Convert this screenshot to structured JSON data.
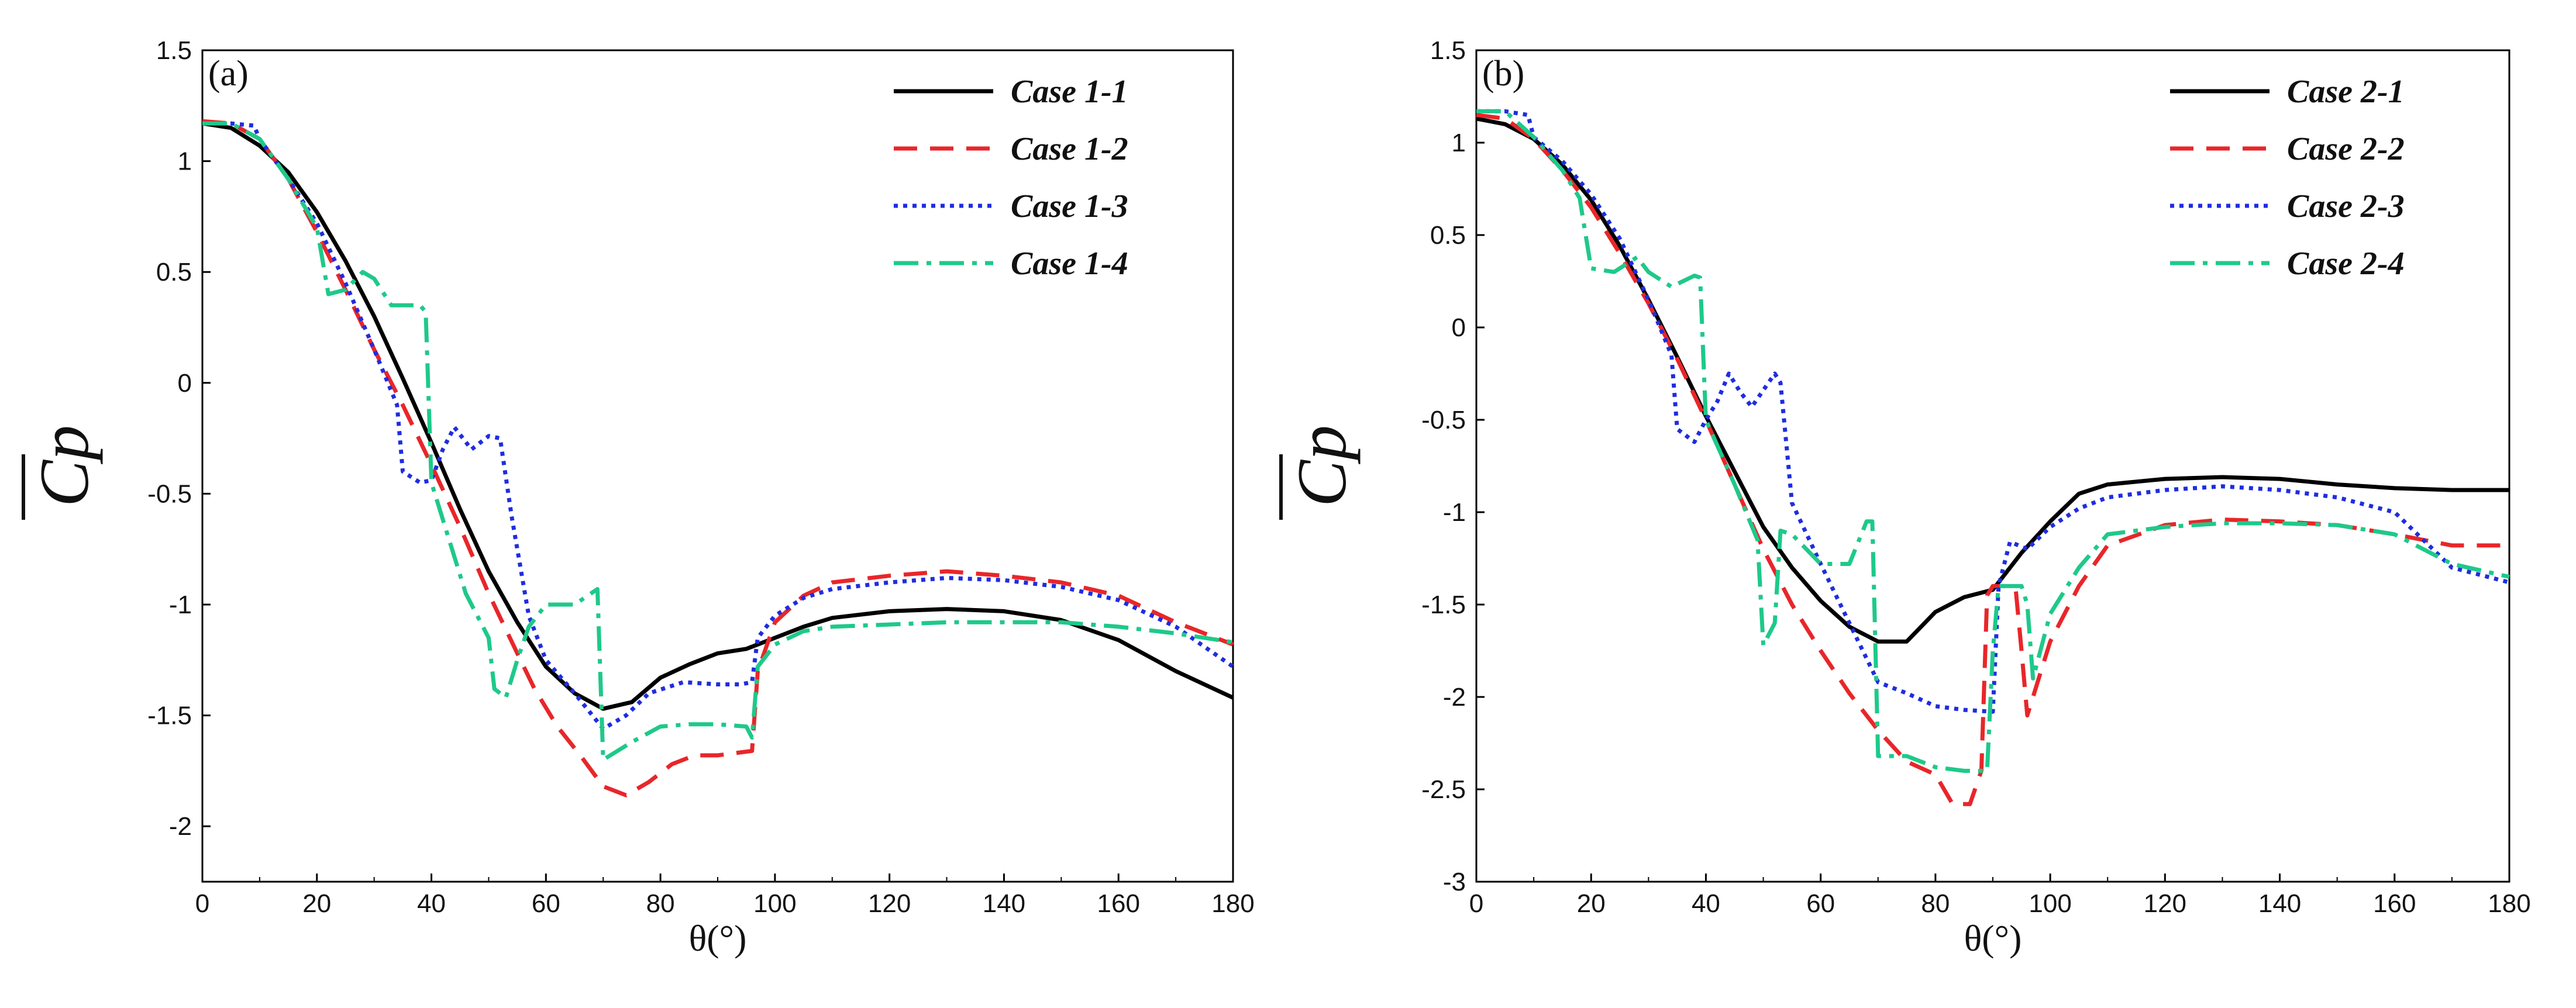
{
  "chart_data": [
    {
      "type": "line",
      "panel_label": "(a)",
      "xlabel": "θ(°)",
      "ylabel": "Cp",
      "xlim": [
        0,
        180
      ],
      "ylim": [
        -2.25,
        1.5
      ],
      "x_ticks": [
        0,
        20,
        40,
        60,
        80,
        100,
        120,
        140,
        160,
        180
      ],
      "x_tick_labels": [
        "0",
        "20",
        "40",
        "60",
        "80",
        "100",
        "120",
        "140",
        "160",
        "180"
      ],
      "y_ticks": [
        1.5,
        1,
        0.5,
        0,
        -0.5,
        -1,
        -1.5,
        -2
      ],
      "y_tick_labels": [
        "1.5",
        "1",
        "0.5",
        "0",
        "-0.5",
        "-1",
        "-1.5",
        "-2"
      ],
      "grid": false,
      "legend": "top-right",
      "series": [
        {
          "name": "Case 1-1",
          "color": "#000000",
          "dash": "solid",
          "x": [
            0,
            5,
            10,
            15,
            20,
            25,
            30,
            35,
            40,
            45,
            50,
            55,
            60,
            65,
            70,
            75,
            80,
            85,
            90,
            95,
            100,
            105,
            110,
            120,
            130,
            140,
            150,
            160,
            170,
            180
          ],
          "y": [
            1.17,
            1.15,
            1.07,
            0.95,
            0.77,
            0.55,
            0.3,
            0.02,
            -0.27,
            -0.57,
            -0.85,
            -1.08,
            -1.28,
            -1.4,
            -1.47,
            -1.44,
            -1.33,
            -1.27,
            -1.22,
            -1.2,
            -1.15,
            -1.1,
            -1.06,
            -1.03,
            -1.02,
            -1.03,
            -1.07,
            -1.16,
            -1.3,
            -1.42
          ]
        },
        {
          "name": "Case 1-2",
          "color": "#e8262a",
          "dash": "long",
          "x": [
            0,
            5,
            10,
            15,
            20,
            25,
            30,
            35,
            40,
            45,
            50,
            55,
            58,
            62,
            66,
            70,
            74,
            78,
            82,
            86,
            90,
            93,
            96,
            97,
            100,
            105,
            110,
            120,
            130,
            140,
            150,
            160,
            170,
            180
          ],
          "y": [
            1.18,
            1.17,
            1.1,
            0.92,
            0.68,
            0.42,
            0.15,
            -0.1,
            -0.37,
            -0.65,
            -0.95,
            -1.22,
            -1.38,
            -1.55,
            -1.68,
            -1.82,
            -1.86,
            -1.8,
            -1.72,
            -1.68,
            -1.68,
            -1.67,
            -1.66,
            -1.3,
            -1.08,
            -0.96,
            -0.9,
            -0.87,
            -0.85,
            -0.87,
            -0.9,
            -0.96,
            -1.08,
            -1.18
          ]
        },
        {
          "name": "Case 1-3",
          "color": "#1f2de0",
          "dash": "dot",
          "x": [
            0,
            5,
            9,
            10,
            15,
            20,
            25,
            30,
            34,
            35,
            38,
            40,
            42,
            44,
            47,
            50,
            52,
            54,
            57,
            60,
            65,
            70,
            74,
            78,
            84,
            90,
            94,
            96,
            97,
            100,
            105,
            110,
            120,
            130,
            140,
            150,
            160,
            170,
            180
          ],
          "y": [
            1.17,
            1.17,
            1.16,
            1.1,
            0.92,
            0.72,
            0.45,
            0.15,
            -0.1,
            -0.4,
            -0.45,
            -0.44,
            -0.3,
            -0.2,
            -0.3,
            -0.24,
            -0.25,
            -0.6,
            -1.05,
            -1.25,
            -1.4,
            -1.56,
            -1.5,
            -1.4,
            -1.35,
            -1.36,
            -1.36,
            -1.35,
            -1.15,
            -1.05,
            -0.97,
            -0.93,
            -0.9,
            -0.88,
            -0.89,
            -0.92,
            -0.98,
            -1.1,
            -1.28
          ]
        },
        {
          "name": "Case 1-4",
          "color": "#1ec98a",
          "dash": "dashdot",
          "x": [
            0,
            5,
            10,
            15,
            20,
            22,
            25,
            28,
            30,
            33,
            38,
            39,
            40,
            43,
            46,
            50,
            51,
            53,
            55,
            57,
            60,
            65,
            69,
            70,
            75,
            80,
            85,
            90,
            95,
            96,
            97,
            100,
            105,
            110,
            120,
            130,
            140,
            150,
            160,
            170,
            180
          ],
          "y": [
            1.17,
            1.17,
            1.1,
            0.92,
            0.7,
            0.4,
            0.42,
            0.5,
            0.47,
            0.35,
            0.35,
            0.32,
            -0.45,
            -0.7,
            -0.95,
            -1.15,
            -1.38,
            -1.42,
            -1.25,
            -1.1,
            -1.0,
            -1.0,
            -0.93,
            -1.7,
            -1.62,
            -1.55,
            -1.54,
            -1.54,
            -1.55,
            -1.6,
            -1.28,
            -1.18,
            -1.12,
            -1.1,
            -1.09,
            -1.08,
            -1.08,
            -1.08,
            -1.1,
            -1.13,
            -1.17
          ]
        }
      ]
    },
    {
      "type": "line",
      "panel_label": "(b)",
      "xlabel": "θ(°)",
      "ylabel": "Cp",
      "xlim": [
        0,
        180
      ],
      "ylim": [
        -3,
        1.5
      ],
      "x_ticks": [
        0,
        20,
        40,
        60,
        80,
        100,
        120,
        140,
        160,
        180
      ],
      "x_tick_labels": [
        "0",
        "20",
        "40",
        "60",
        "80",
        "100",
        "120",
        "140",
        "160",
        "180"
      ],
      "y_ticks": [
        1.5,
        1,
        0.5,
        0,
        -0.5,
        -1,
        -1.5,
        -2,
        -2.5,
        -3
      ],
      "y_tick_labels": [
        "1.5",
        "1",
        "0.5",
        "0",
        "-0.5",
        "-1",
        "-1.5",
        "-2",
        "-2.5",
        "-3"
      ],
      "grid": false,
      "legend": "top-right",
      "series": [
        {
          "name": "Case 2-1",
          "color": "#000000",
          "dash": "solid",
          "x": [
            0,
            5,
            10,
            15,
            20,
            25,
            30,
            35,
            40,
            45,
            50,
            55,
            60,
            65,
            70,
            75,
            80,
            85,
            90,
            95,
            100,
            105,
            110,
            120,
            130,
            140,
            150,
            160,
            170,
            180
          ],
          "y": [
            1.13,
            1.1,
            1.02,
            0.88,
            0.69,
            0.44,
            0.15,
            -0.16,
            -0.48,
            -0.78,
            -1.08,
            -1.3,
            -1.48,
            -1.62,
            -1.7,
            -1.7,
            -1.54,
            -1.46,
            -1.42,
            -1.22,
            -1.05,
            -0.9,
            -0.85,
            -0.82,
            -0.81,
            -0.82,
            -0.85,
            -0.87,
            -0.88,
            -0.88
          ]
        },
        {
          "name": "Case 2-2",
          "color": "#e8262a",
          "dash": "long",
          "x": [
            0,
            5,
            10,
            15,
            20,
            25,
            30,
            35,
            40,
            45,
            50,
            55,
            60,
            65,
            70,
            75,
            80,
            83,
            86,
            88,
            89,
            90,
            92,
            94,
            95,
            96,
            100,
            105,
            110,
            120,
            130,
            140,
            150,
            160,
            170,
            180
          ],
          "y": [
            1.15,
            1.13,
            1.02,
            0.85,
            0.65,
            0.4,
            0.13,
            -0.17,
            -0.5,
            -0.85,
            -1.2,
            -1.5,
            -1.75,
            -1.98,
            -2.18,
            -2.35,
            -2.42,
            -2.58,
            -2.58,
            -2.4,
            -1.45,
            -1.4,
            -1.4,
            -1.42,
            -1.75,
            -2.1,
            -1.7,
            -1.4,
            -1.18,
            -1.07,
            -1.04,
            -1.05,
            -1.07,
            -1.12,
            -1.18,
            -1.18
          ]
        },
        {
          "name": "Case 2-3",
          "color": "#1f2de0",
          "dash": "dot",
          "x": [
            0,
            5,
            9,
            10,
            15,
            20,
            25,
            30,
            34,
            35,
            38,
            40,
            42,
            44,
            46,
            48,
            52,
            53,
            55,
            60,
            65,
            70,
            75,
            80,
            85,
            90,
            91,
            93,
            96,
            100,
            105,
            110,
            120,
            130,
            140,
            150,
            160,
            170,
            180
          ],
          "y": [
            1.17,
            1.17,
            1.15,
            1.03,
            0.9,
            0.72,
            0.48,
            0.15,
            -0.15,
            -0.55,
            -0.62,
            -0.5,
            -0.4,
            -0.25,
            -0.35,
            -0.43,
            -0.25,
            -0.3,
            -0.95,
            -1.28,
            -1.6,
            -1.92,
            -1.98,
            -2.05,
            -2.07,
            -2.08,
            -1.4,
            -1.16,
            -1.2,
            -1.08,
            -0.98,
            -0.92,
            -0.88,
            -0.86,
            -0.88,
            -0.92,
            -1.0,
            -1.3,
            -1.38
          ]
        },
        {
          "name": "Case 2-4",
          "color": "#1ec98a",
          "dash": "dashdot",
          "x": [
            0,
            5,
            10,
            15,
            18,
            20,
            24,
            28,
            30,
            34,
            38,
            39,
            40,
            45,
            49,
            50,
            52,
            53,
            55,
            60,
            65,
            68,
            69,
            70,
            75,
            80,
            85,
            89,
            90,
            91,
            95,
            96,
            97,
            100,
            105,
            110,
            120,
            130,
            140,
            150,
            160,
            170,
            180
          ],
          "y": [
            1.17,
            1.17,
            1.03,
            0.85,
            0.7,
            0.32,
            0.3,
            0.38,
            0.3,
            0.22,
            0.28,
            0.27,
            -0.5,
            -0.85,
            -1.15,
            -1.72,
            -1.6,
            -1.1,
            -1.12,
            -1.28,
            -1.28,
            -1.05,
            -1.05,
            -2.32,
            -2.32,
            -2.38,
            -2.4,
            -2.4,
            -1.75,
            -1.4,
            -1.4,
            -1.5,
            -1.9,
            -1.55,
            -1.3,
            -1.12,
            -1.08,
            -1.06,
            -1.06,
            -1.07,
            -1.12,
            -1.28,
            -1.35
          ]
        }
      ]
    }
  ]
}
